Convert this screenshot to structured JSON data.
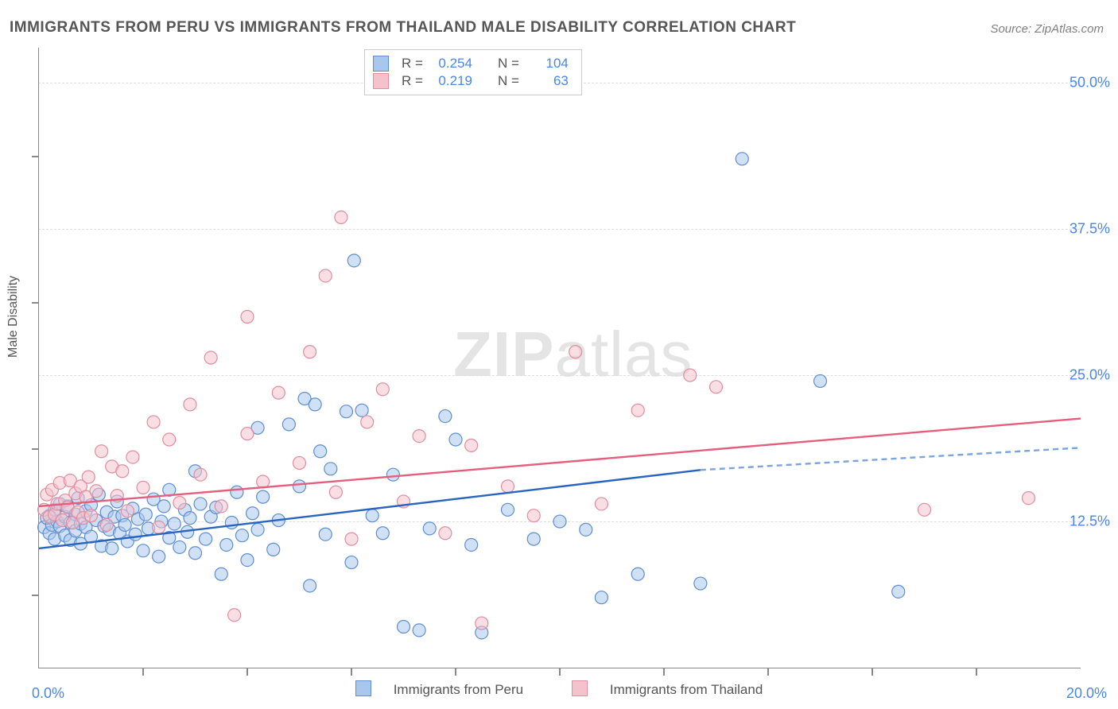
{
  "title": "IMMIGRANTS FROM PERU VS IMMIGRANTS FROM THAILAND MALE DISABILITY CORRELATION CHART",
  "source": "Source: ZipAtlas.com",
  "watermark": {
    "part1": "ZIP",
    "part2": "atlas"
  },
  "ylabel": "Male Disability",
  "chart": {
    "type": "scatter-with-regression",
    "xlim": [
      0,
      20
    ],
    "ylim": [
      0,
      53
    ],
    "x_ticks_major": [
      0,
      20
    ],
    "x_ticks_minor": [
      2,
      4,
      6,
      8,
      10,
      12,
      14,
      16,
      18
    ],
    "y_ticks": [
      12.5,
      25.0,
      37.5,
      50.0
    ],
    "y_tick_labels": [
      "12.5%",
      "25.0%",
      "37.5%",
      "50.0%"
    ],
    "x_tick_labels": [
      "0.0%",
      "20.0%"
    ],
    "background_color": "#ffffff",
    "grid_color": "#dddddd",
    "grid_dash": "6,5",
    "axis_color": "#888888",
    "series": [
      {
        "name": "Immigrants from Peru",
        "fill_color": "#a9c6ec",
        "stroke_color": "#5e8ed0",
        "fill_opacity": 0.55,
        "marker_radius": 8,
        "stats": {
          "R": "0.254",
          "N": "104"
        },
        "regression": {
          "solid": {
            "x1": 0,
            "y1": 10.2,
            "x2": 12.7,
            "y2": 16.9
          },
          "dashed": {
            "x1": 12.7,
            "y1": 16.9,
            "x2": 20,
            "y2": 18.8
          },
          "solid_color": "#2964c0",
          "dashed_color": "#7ba4dd",
          "width": 2.4,
          "dash": "7,5"
        },
        "points": [
          [
            0.1,
            12.0
          ],
          [
            0.15,
            12.8
          ],
          [
            0.2,
            11.5
          ],
          [
            0.2,
            13.0
          ],
          [
            0.25,
            12.2
          ],
          [
            0.3,
            11.0
          ],
          [
            0.3,
            13.5
          ],
          [
            0.35,
            12.5
          ],
          [
            0.4,
            12.1
          ],
          [
            0.4,
            14.0
          ],
          [
            0.5,
            11.3
          ],
          [
            0.5,
            12.9
          ],
          [
            0.55,
            13.8
          ],
          [
            0.6,
            10.9
          ],
          [
            0.6,
            12.4
          ],
          [
            0.7,
            13.1
          ],
          [
            0.7,
            11.7
          ],
          [
            0.75,
            14.5
          ],
          [
            0.8,
            12.3
          ],
          [
            0.8,
            10.6
          ],
          [
            0.9,
            13.4
          ],
          [
            0.9,
            12.0
          ],
          [
            1.0,
            11.2
          ],
          [
            1.0,
            13.9
          ],
          [
            1.1,
            12.6
          ],
          [
            1.15,
            14.8
          ],
          [
            1.2,
            10.4
          ],
          [
            1.25,
            12.1
          ],
          [
            1.3,
            13.3
          ],
          [
            1.35,
            11.8
          ],
          [
            1.4,
            10.2
          ],
          [
            1.45,
            12.9
          ],
          [
            1.5,
            14.2
          ],
          [
            1.55,
            11.5
          ],
          [
            1.6,
            13.0
          ],
          [
            1.65,
            12.2
          ],
          [
            1.7,
            10.8
          ],
          [
            1.8,
            13.6
          ],
          [
            1.85,
            11.4
          ],
          [
            1.9,
            12.7
          ],
          [
            2.0,
            10.0
          ],
          [
            2.05,
            13.1
          ],
          [
            2.1,
            11.9
          ],
          [
            2.2,
            14.4
          ],
          [
            2.3,
            9.5
          ],
          [
            2.35,
            12.5
          ],
          [
            2.4,
            13.8
          ],
          [
            2.5,
            11.1
          ],
          [
            2.6,
            12.3
          ],
          [
            2.7,
            10.3
          ],
          [
            2.8,
            13.5
          ],
          [
            2.85,
            11.6
          ],
          [
            2.9,
            12.8
          ],
          [
            3.0,
            9.8
          ],
          [
            3.1,
            14.0
          ],
          [
            3.2,
            11.0
          ],
          [
            3.3,
            12.9
          ],
          [
            3.4,
            13.7
          ],
          [
            3.5,
            8.0
          ],
          [
            3.6,
            10.5
          ],
          [
            3.7,
            12.4
          ],
          [
            3.8,
            15.0
          ],
          [
            3.9,
            11.3
          ],
          [
            4.0,
            9.2
          ],
          [
            4.1,
            13.2
          ],
          [
            4.2,
            11.8
          ],
          [
            4.3,
            14.6
          ],
          [
            4.5,
            10.1
          ],
          [
            4.6,
            12.6
          ],
          [
            4.8,
            20.8
          ],
          [
            5.0,
            15.5
          ],
          [
            5.1,
            23.0
          ],
          [
            5.2,
            7.0
          ],
          [
            5.3,
            22.5
          ],
          [
            5.5,
            11.4
          ],
          [
            5.6,
            17.0
          ],
          [
            5.9,
            21.9
          ],
          [
            6.0,
            9.0
          ],
          [
            6.05,
            34.8
          ],
          [
            6.2,
            22.0
          ],
          [
            6.4,
            13.0
          ],
          [
            6.6,
            11.5
          ],
          [
            6.8,
            16.5
          ],
          [
            7.0,
            3.5
          ],
          [
            7.3,
            3.2
          ],
          [
            7.5,
            11.9
          ],
          [
            7.8,
            21.5
          ],
          [
            8.0,
            19.5
          ],
          [
            8.3,
            10.5
          ],
          [
            8.5,
            3.0
          ],
          [
            9.0,
            13.5
          ],
          [
            9.5,
            11.0
          ],
          [
            10.0,
            12.5
          ],
          [
            10.5,
            11.8
          ],
          [
            10.8,
            6.0
          ],
          [
            11.5,
            8.0
          ],
          [
            12.7,
            7.2
          ],
          [
            13.5,
            43.5
          ],
          [
            15.0,
            24.5
          ],
          [
            16.5,
            6.5
          ],
          [
            2.5,
            15.2
          ],
          [
            3.0,
            16.8
          ],
          [
            4.2,
            20.5
          ],
          [
            5.4,
            18.5
          ]
        ]
      },
      {
        "name": "Immigrants from Thailand",
        "fill_color": "#f4c2cd",
        "stroke_color": "#e18d9e",
        "fill_opacity": 0.55,
        "marker_radius": 8,
        "stats": {
          "R": "0.219",
          "N": "63"
        },
        "regression": {
          "solid": {
            "x1": 0,
            "y1": 13.8,
            "x2": 20,
            "y2": 21.3
          },
          "dashed": null,
          "solid_color": "#e65d7e",
          "width": 2.4
        },
        "points": [
          [
            0.1,
            13.5
          ],
          [
            0.15,
            14.8
          ],
          [
            0.2,
            12.9
          ],
          [
            0.25,
            15.2
          ],
          [
            0.3,
            13.1
          ],
          [
            0.35,
            14.0
          ],
          [
            0.4,
            15.8
          ],
          [
            0.45,
            12.6
          ],
          [
            0.5,
            14.3
          ],
          [
            0.55,
            13.7
          ],
          [
            0.6,
            16.0
          ],
          [
            0.65,
            12.4
          ],
          [
            0.7,
            14.9
          ],
          [
            0.75,
            13.3
          ],
          [
            0.8,
            15.5
          ],
          [
            0.85,
            12.8
          ],
          [
            0.9,
            14.6
          ],
          [
            0.95,
            16.3
          ],
          [
            1.0,
            13.0
          ],
          [
            1.1,
            15.1
          ],
          [
            1.2,
            18.5
          ],
          [
            1.3,
            12.2
          ],
          [
            1.4,
            17.2
          ],
          [
            1.5,
            14.7
          ],
          [
            1.6,
            16.8
          ],
          [
            1.7,
            13.4
          ],
          [
            1.8,
            18.0
          ],
          [
            2.0,
            15.4
          ],
          [
            2.2,
            21.0
          ],
          [
            2.3,
            12.0
          ],
          [
            2.5,
            19.5
          ],
          [
            2.7,
            14.1
          ],
          [
            2.9,
            22.5
          ],
          [
            3.1,
            16.5
          ],
          [
            3.3,
            26.5
          ],
          [
            3.5,
            13.8
          ],
          [
            3.75,
            4.5
          ],
          [
            4.0,
            20.0
          ],
          [
            4.3,
            15.9
          ],
          [
            4.6,
            23.5
          ],
          [
            5.0,
            17.5
          ],
          [
            5.2,
            27.0
          ],
          [
            5.5,
            33.5
          ],
          [
            5.7,
            15.0
          ],
          [
            5.8,
            38.5
          ],
          [
            6.0,
            11.0
          ],
          [
            6.3,
            21.0
          ],
          [
            6.6,
            23.8
          ],
          [
            7.0,
            14.2
          ],
          [
            7.3,
            19.8
          ],
          [
            7.8,
            11.5
          ],
          [
            8.3,
            19.0
          ],
          [
            8.5,
            3.8
          ],
          [
            9.0,
            15.5
          ],
          [
            9.5,
            13.0
          ],
          [
            10.3,
            27.0
          ],
          [
            10.8,
            14.0
          ],
          [
            11.5,
            22.0
          ],
          [
            12.5,
            25.0
          ],
          [
            13.0,
            24.0
          ],
          [
            17.0,
            13.5
          ],
          [
            19.0,
            14.5
          ],
          [
            4.0,
            30.0
          ]
        ]
      }
    ]
  },
  "bottom_legend": {
    "series1_label": "Immigrants from Peru",
    "series2_label": "Immigrants from Thailand"
  },
  "top_legend": {
    "r_label": "R =",
    "n_label": "N ="
  }
}
